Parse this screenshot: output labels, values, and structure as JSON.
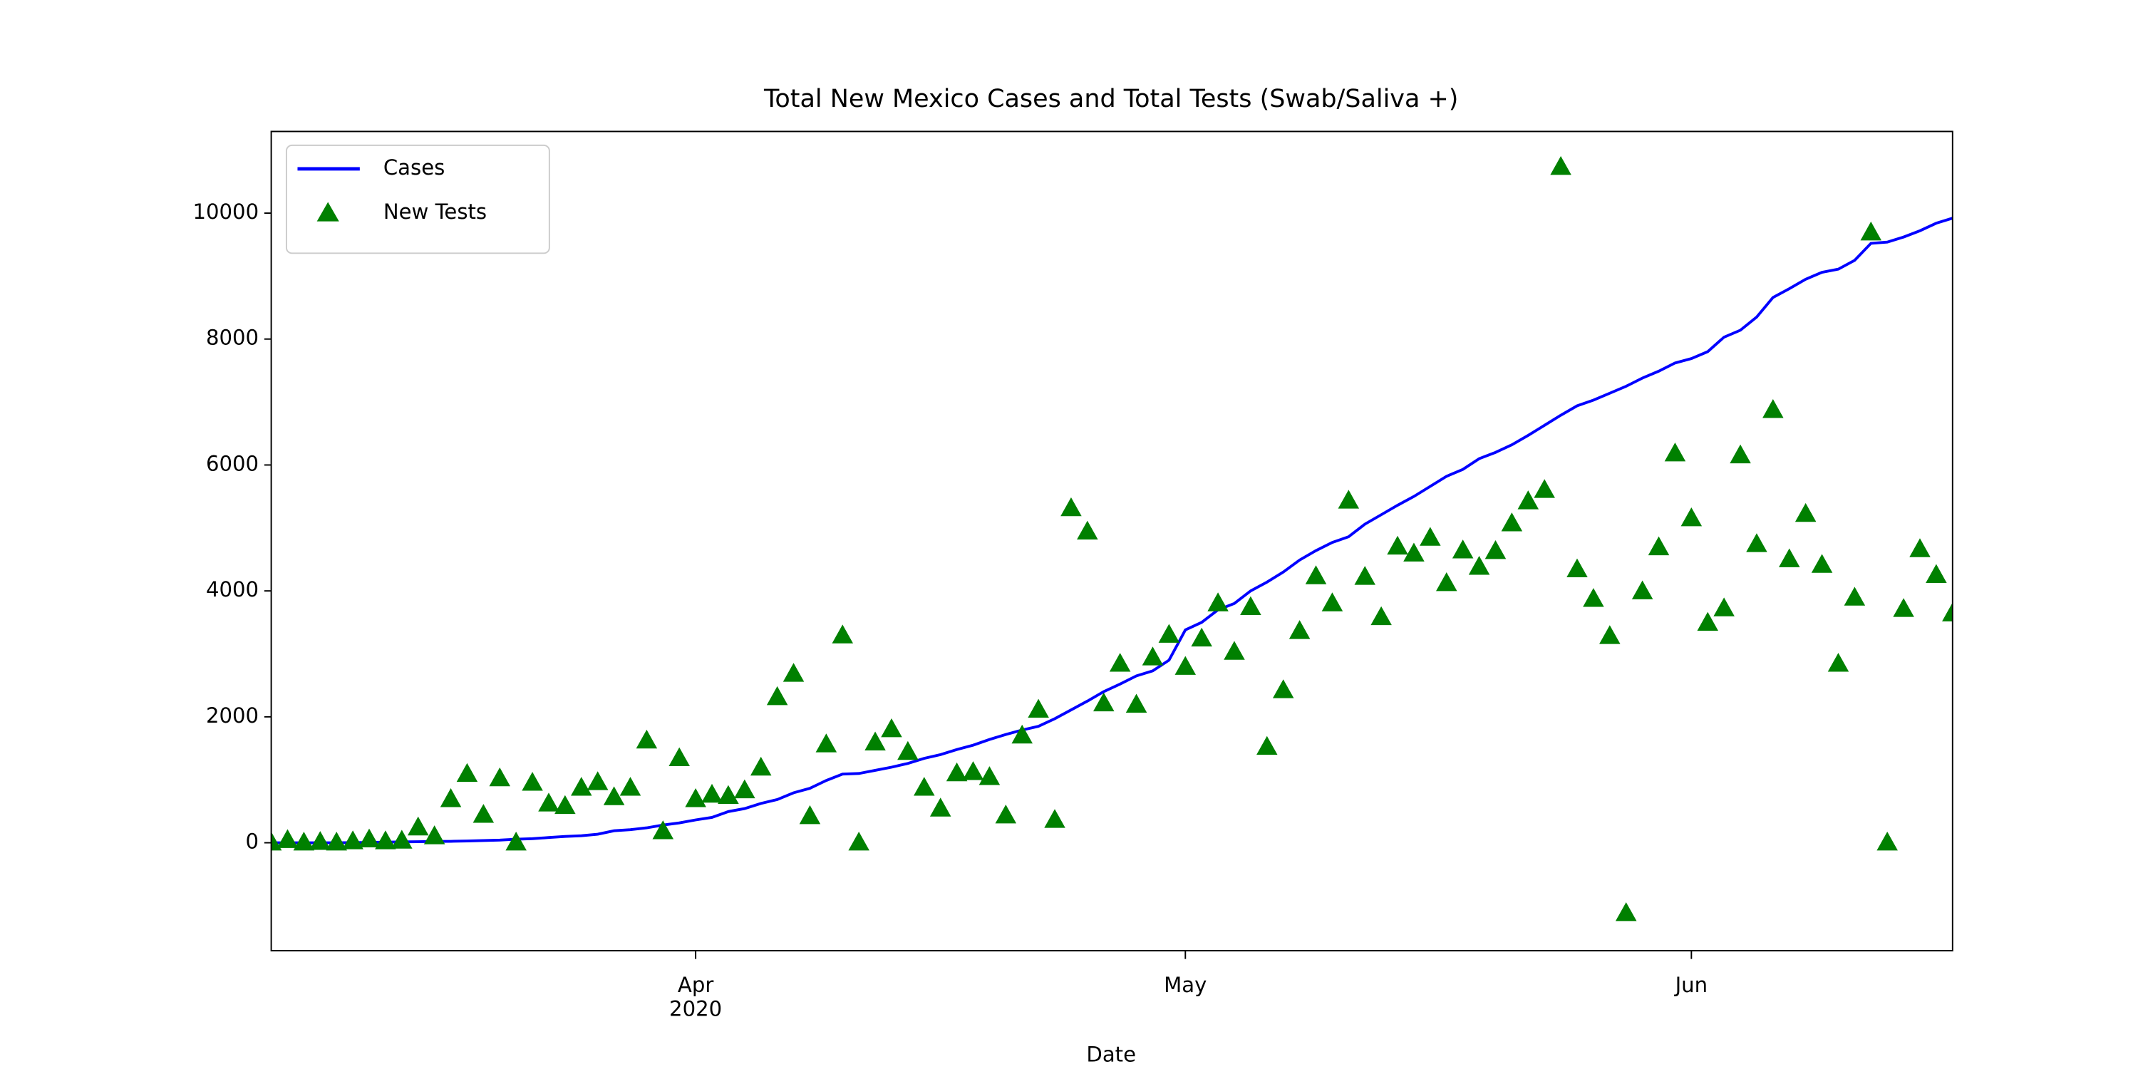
{
  "chart_data": {
    "type": "line_scatter",
    "title": "Total New Mexico Cases and Total Tests (Swab/Saliva +)",
    "x_label": "Date",
    "x": [
      "2020-03-06",
      "2020-03-07",
      "2020-03-08",
      "2020-03-09",
      "2020-03-10",
      "2020-03-11",
      "2020-03-12",
      "2020-03-13",
      "2020-03-14",
      "2020-03-15",
      "2020-03-16",
      "2020-03-17",
      "2020-03-18",
      "2020-03-19",
      "2020-03-20",
      "2020-03-21",
      "2020-03-22",
      "2020-03-23",
      "2020-03-24",
      "2020-03-25",
      "2020-03-26",
      "2020-03-27",
      "2020-03-28",
      "2020-03-29",
      "2020-03-30",
      "2020-03-31",
      "2020-04-01",
      "2020-04-02",
      "2020-04-03",
      "2020-04-04",
      "2020-04-05",
      "2020-04-06",
      "2020-04-07",
      "2020-04-08",
      "2020-04-09",
      "2020-04-10",
      "2020-04-11",
      "2020-04-12",
      "2020-04-13",
      "2020-04-14",
      "2020-04-15",
      "2020-04-16",
      "2020-04-17",
      "2020-04-18",
      "2020-04-19",
      "2020-04-20",
      "2020-04-21",
      "2020-04-22",
      "2020-04-23",
      "2020-04-24",
      "2020-04-25",
      "2020-04-26",
      "2020-04-27",
      "2020-04-28",
      "2020-04-29",
      "2020-04-30",
      "2020-05-01",
      "2020-05-02",
      "2020-05-03",
      "2020-05-04",
      "2020-05-05",
      "2020-05-06",
      "2020-05-07",
      "2020-05-08",
      "2020-05-09",
      "2020-05-10",
      "2020-05-11",
      "2020-05-12",
      "2020-05-13",
      "2020-05-14",
      "2020-05-15",
      "2020-05-16",
      "2020-05-17",
      "2020-05-18",
      "2020-05-19",
      "2020-05-20",
      "2020-05-21",
      "2020-05-22",
      "2020-05-23",
      "2020-05-24",
      "2020-05-25",
      "2020-05-26",
      "2020-05-27",
      "2020-05-28",
      "2020-05-29",
      "2020-05-30",
      "2020-05-31",
      "2020-06-01",
      "2020-06-02",
      "2020-06-03",
      "2020-06-04",
      "2020-06-05",
      "2020-06-06",
      "2020-06-07",
      "2020-06-08",
      "2020-06-09",
      "2020-06-10",
      "2020-06-11",
      "2020-06-12",
      "2020-06-13",
      "2020-06-14",
      "2020-06-15",
      "2020-06-16",
      "2020-06-17"
    ],
    "series": [
      {
        "name": "Cases",
        "kind": "line",
        "color": "#0000ff",
        "values": [
          0,
          0,
          0,
          0,
          0,
          3,
          5,
          10,
          14,
          17,
          21,
          23,
          28,
          35,
          43,
          57,
          65,
          83,
          100,
          112,
          136,
          191,
          208,
          237,
          281,
          315,
          363,
          403,
          495,
          543,
          624,
          686,
          794,
          865,
          989,
          1091,
          1100,
          1150,
          1200,
          1260,
          1340,
          1400,
          1480,
          1550,
          1640,
          1720,
          1790,
          1850,
          1970,
          2110,
          2250,
          2400,
          2520,
          2650,
          2730,
          2900,
          3380,
          3500,
          3700,
          3800,
          4000,
          4140,
          4300,
          4490,
          4640,
          4770,
          4860,
          5060,
          5210,
          5360,
          5500,
          5660,
          5820,
          5930,
          6100,
          6200,
          6320,
          6470,
          6630,
          6790,
          6940,
          7030,
          7140,
          7250,
          7380,
          7490,
          7620,
          7690,
          7800,
          8030,
          8140,
          8350,
          8660,
          8800,
          8950,
          9060,
          9110,
          9250,
          9520,
          9540,
          9620,
          9720,
          9840,
          9920
        ]
      },
      {
        "name": "New Tests",
        "kind": "scatter",
        "marker": "triangle",
        "color": "#008000",
        "values": [
          0,
          40,
          0,
          10,
          0,
          20,
          50,
          20,
          30,
          240,
          100,
          690,
          1090,
          440,
          1020,
          0,
          950,
          620,
          580,
          870,
          960,
          720,
          870,
          1620,
          180,
          1340,
          690,
          760,
          740,
          830,
          1190,
          2310,
          2680,
          420,
          1560,
          3290,
          0,
          1590,
          1800,
          1440,
          870,
          540,
          1100,
          1120,
          1040,
          430,
          1700,
          2110,
          360,
          5310,
          4940,
          2210,
          2840,
          2190,
          2940,
          3300,
          2790,
          3240,
          3800,
          3030,
          3740,
          1520,
          2420,
          3360,
          4230,
          3800,
          5430,
          4220,
          3580,
          4700,
          4590,
          4840,
          4120,
          4640,
          4380,
          4630,
          5070,
          5420,
          5600,
          10730,
          4340,
          3870,
          3280,
          -1120,
          3990,
          4690,
          6180,
          5150,
          3490,
          3720,
          6150,
          4740,
          6870,
          4500,
          5220,
          4410,
          2840,
          3890,
          9690,
          0,
          3710,
          4660,
          4250,
          3640
        ]
      }
    ],
    "xlim": [
      "2020-03-06",
      "2020-06-17"
    ],
    "xticks": [
      {
        "value": "2020-04-01",
        "label": "Apr\n2020"
      },
      {
        "value": "2020-05-01",
        "label": "May"
      },
      {
        "value": "2020-06-01",
        "label": "Jun"
      }
    ],
    "ylim": [
      -1714,
      11297
    ],
    "yticks": [
      0,
      2000,
      4000,
      6000,
      8000,
      10000
    ],
    "grid": false,
    "legend": "upper left"
  }
}
